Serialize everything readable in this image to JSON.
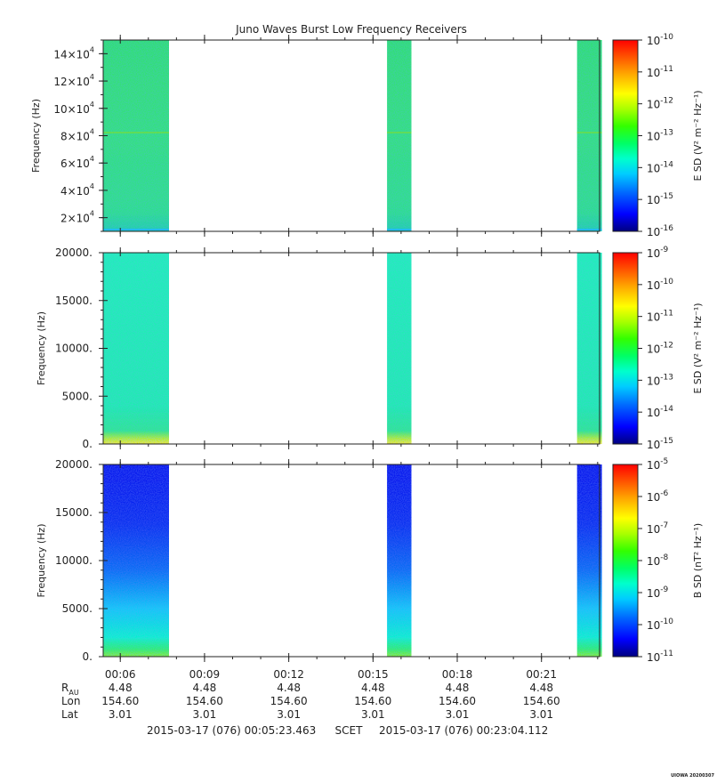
{
  "title": "Juno Waves Burst Low Frequency Receivers",
  "colors": {
    "bg": "#ffffff",
    "axis": "#222222",
    "colormap": [
      "#00007f",
      "#0000ff",
      "#0066ff",
      "#00ccff",
      "#00ffcc",
      "#00ff66",
      "#33ff00",
      "#aaff00",
      "#ffff00",
      "#ffaa00",
      "#ff5500",
      "#ff0000"
    ]
  },
  "chart_data": [
    {
      "type": "heatmap",
      "panel": "top",
      "ylabel": "Frequency (Hz)",
      "ylim": [
        10000,
        150000
      ],
      "yticks": [
        {
          "value": 20000,
          "mant": "2",
          "exp": "4"
        },
        {
          "value": 40000,
          "mant": "4",
          "exp": "4"
        },
        {
          "value": 60000,
          "mant": "6",
          "exp": "4"
        },
        {
          "value": 80000,
          "mant": "8",
          "exp": "4"
        },
        {
          "value": 100000,
          "mant": "10",
          "exp": "4"
        },
        {
          "value": 120000,
          "mant": "12",
          "exp": "4"
        },
        {
          "value": 140000,
          "mant": "14",
          "exp": "4"
        }
      ],
      "colorbar": {
        "label": "E SD (V² m⁻² Hz⁻¹)",
        "ticks": [
          {
            "exp": "-10"
          },
          {
            "exp": "-11"
          },
          {
            "exp": "-12"
          },
          {
            "exp": "-13"
          },
          {
            "exp": "-14"
          },
          {
            "exp": "-15"
          },
          {
            "exp": "-16"
          }
        ]
      },
      "segments": [
        {
          "start": "00:05:23",
          "end": "00:07:34"
        },
        {
          "start": "00:15:30",
          "end": "00:16:12"
        },
        {
          "start": "00:22:16",
          "end": "00:22:59"
        }
      ]
    },
    {
      "type": "heatmap",
      "panel": "middle",
      "ylabel": "Frequency (Hz)",
      "ylim": [
        0,
        20000
      ],
      "yticks": [
        "0.",
        "5000.",
        "10000.",
        "15000.",
        "20000."
      ],
      "colorbar": {
        "label": "E SD (V² m⁻² Hz⁻¹)",
        "ticks": [
          {
            "exp": "-9"
          },
          {
            "exp": "-10"
          },
          {
            "exp": "-11"
          },
          {
            "exp": "-12"
          },
          {
            "exp": "-13"
          },
          {
            "exp": "-14"
          },
          {
            "exp": "-15"
          }
        ]
      },
      "segments": [
        {
          "start": "00:05:23",
          "end": "00:07:34"
        },
        {
          "start": "00:15:30",
          "end": "00:16:12"
        },
        {
          "start": "00:22:16",
          "end": "00:22:59"
        }
      ]
    },
    {
      "type": "heatmap",
      "panel": "bottom",
      "ylabel": "Frequency (Hz)",
      "ylim": [
        0,
        20000
      ],
      "yticks": [
        "0.",
        "5000.",
        "10000.",
        "15000.",
        "20000."
      ],
      "colorbar": {
        "label": "B SD (nT² Hz⁻¹)",
        "ticks": [
          {
            "exp": "-5"
          },
          {
            "exp": "-6"
          },
          {
            "exp": "-7"
          },
          {
            "exp": "-8"
          },
          {
            "exp": "-9"
          },
          {
            "exp": "-10"
          },
          {
            "exp": "-11"
          }
        ]
      },
      "segments": [
        {
          "start": "00:05:23",
          "end": "00:07:34"
        },
        {
          "start": "00:15:30",
          "end": "00:16:12"
        },
        {
          "start": "00:22:16",
          "end": "00:22:59"
        }
      ]
    }
  ],
  "xaxis": {
    "range": [
      "00:05:23.463",
      "00:23:04.112"
    ],
    "ticks": [
      "00:06",
      "00:09",
      "00:12",
      "00:15",
      "00:18",
      "00:21"
    ]
  },
  "ephemeris": {
    "labels": {
      "r": "R",
      "r_sub": "AU",
      "lon": "Lon",
      "lat": "Lat"
    },
    "r": [
      "4.48",
      "4.48",
      "4.48",
      "4.48",
      "4.48",
      "4.48"
    ],
    "lon": [
      "154.60",
      "154.60",
      "154.60",
      "154.60",
      "154.60",
      "154.60"
    ],
    "lat": [
      "3.01",
      "3.01",
      "3.01",
      "3.01",
      "3.01",
      "3.01"
    ]
  },
  "footer": {
    "start": "2015-03-17 (076) 00:05:23.463",
    "mid": "SCET",
    "end": "2015-03-17 (076) 00:23:04.112"
  },
  "stamp": "UIOWA 20200307"
}
